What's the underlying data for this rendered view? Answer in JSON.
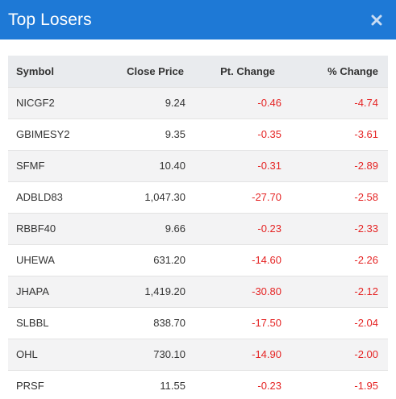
{
  "header": {
    "title": "Top Losers",
    "close_icon": "close-icon",
    "background": "#1e79d6"
  },
  "table": {
    "columns": [
      "Symbol",
      "Close Price",
      "Pt. Change",
      "% Change"
    ],
    "rows": [
      {
        "symbol": "NICGF2",
        "close": "9.24",
        "pt": "-0.46",
        "pct": "-4.74"
      },
      {
        "symbol": "GBIMESY2",
        "close": "9.35",
        "pt": "-0.35",
        "pct": "-3.61"
      },
      {
        "symbol": "SFMF",
        "close": "10.40",
        "pt": "-0.31",
        "pct": "-2.89"
      },
      {
        "symbol": "ADBLD83",
        "close": "1,047.30",
        "pt": "-27.70",
        "pct": "-2.58"
      },
      {
        "symbol": "RBBF40",
        "close": "9.66",
        "pt": "-0.23",
        "pct": "-2.33"
      },
      {
        "symbol": "UHEWA",
        "close": "631.20",
        "pt": "-14.60",
        "pct": "-2.26"
      },
      {
        "symbol": "JHAPA",
        "close": "1,419.20",
        "pt": "-30.80",
        "pct": "-2.12"
      },
      {
        "symbol": "SLBBL",
        "close": "838.70",
        "pt": "-17.50",
        "pct": "-2.04"
      },
      {
        "symbol": "OHL",
        "close": "730.10",
        "pt": "-14.90",
        "pct": "-2.00"
      },
      {
        "symbol": "PRSF",
        "close": "11.55",
        "pt": "-0.23",
        "pct": "-1.95"
      }
    ],
    "negative_color": "#e52424"
  }
}
